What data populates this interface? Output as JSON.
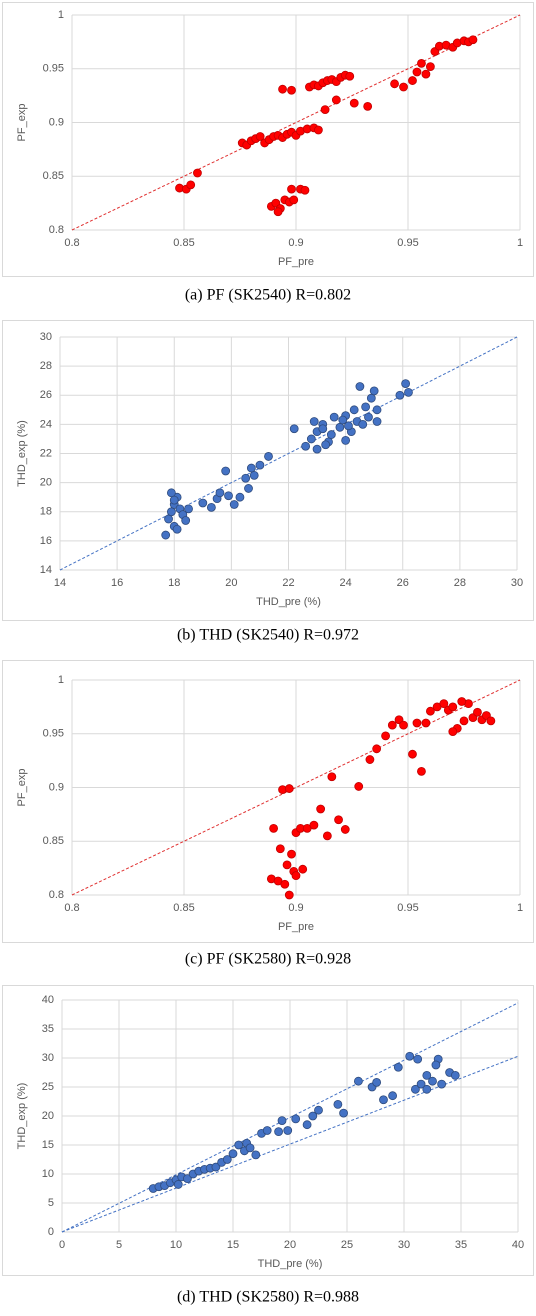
{
  "chart_data": [
    {
      "type": "scatter",
      "caption": "(a)  PF  (SK2540)  R=0.802",
      "x_label": "PF_pre",
      "y_label": "PF_exp",
      "xlim": [
        0.8,
        1
      ],
      "ylim": [
        0.8,
        1
      ],
      "xticks": [
        0.8,
        0.85,
        0.9,
        0.95,
        1
      ],
      "yticks": [
        0.8,
        0.85,
        0.9,
        0.95,
        1
      ],
      "grid": true,
      "color": "#ff0000",
      "edge_color": "#c00000",
      "lines": [
        {
          "x": [
            0.8,
            1
          ],
          "y": [
            0.8,
            1
          ],
          "color": "#e03030"
        }
      ],
      "x": [
        0.848,
        0.851,
        0.853,
        0.856,
        0.876,
        0.878,
        0.88,
        0.882,
        0.884,
        0.886,
        0.888,
        0.89,
        0.892,
        0.894,
        0.896,
        0.898,
        0.9,
        0.902,
        0.905,
        0.908,
        0.91,
        0.889,
        0.891,
        0.893,
        0.895,
        0.897,
        0.899,
        0.892,
        0.898,
        0.902,
        0.904,
        0.894,
        0.898,
        0.906,
        0.908,
        0.91,
        0.912,
        0.914,
        0.916,
        0.918,
        0.92,
        0.922,
        0.924,
        0.913,
        0.918,
        0.926,
        0.932,
        0.944,
        0.948,
        0.952,
        0.954,
        0.956,
        0.958,
        0.96,
        0.962,
        0.964,
        0.967,
        0.97,
        0.972,
        0.975,
        0.977,
        0.979
      ],
      "y": [
        0.839,
        0.838,
        0.842,
        0.853,
        0.881,
        0.879,
        0.883,
        0.885,
        0.887,
        0.881,
        0.884,
        0.887,
        0.888,
        0.886,
        0.889,
        0.891,
        0.888,
        0.892,
        0.894,
        0.895,
        0.893,
        0.822,
        0.825,
        0.82,
        0.828,
        0.826,
        0.828,
        0.817,
        0.838,
        0.838,
        0.837,
        0.931,
        0.93,
        0.933,
        0.935,
        0.934,
        0.937,
        0.939,
        0.94,
        0.938,
        0.942,
        0.944,
        0.943,
        0.912,
        0.921,
        0.918,
        0.915,
        0.936,
        0.933,
        0.939,
        0.947,
        0.955,
        0.945,
        0.952,
        0.966,
        0.971,
        0.972,
        0.97,
        0.974,
        0.976,
        0.975,
        0.977
      ]
    },
    {
      "type": "scatter",
      "caption": "(b)  THD  (SK2540)  R=0.972",
      "x_label": "THD_pre (%)",
      "y_label": "THD_exp (%)",
      "xlim": [
        14,
        30
      ],
      "ylim": [
        14,
        30
      ],
      "xticks": [
        14,
        16,
        18,
        20,
        22,
        24,
        26,
        28,
        30
      ],
      "yticks": [
        14,
        16,
        18,
        20,
        22,
        24,
        26,
        28,
        30
      ],
      "grid": true,
      "color": "#4472c4",
      "edge_color": "#2f4b7c",
      "lines": [
        {
          "x": [
            14,
            30
          ],
          "y": [
            14,
            30
          ],
          "color": "#4472c4"
        }
      ],
      "x": [
        17.7,
        17.8,
        17.9,
        18,
        18.1,
        18,
        17.9,
        18.2,
        18.3,
        18.4,
        18.1,
        18,
        18.5,
        19,
        19.3,
        19.5,
        19.6,
        19.8,
        19.9,
        20.1,
        20.3,
        20.5,
        20.6,
        20.8,
        20.7,
        21,
        21.3,
        22.2,
        22.6,
        22.8,
        23,
        23,
        23.2,
        23.4,
        23.5,
        23.6,
        23.8,
        24,
        24,
        24.2,
        24.3,
        24.4,
        24.5,
        24.6,
        24.7,
        24.8,
        24.9,
        25,
        25.1,
        25.1,
        23.2,
        22.9,
        23.3,
        24.1,
        23.9,
        25.9,
        26.1,
        26.2
      ],
      "y": [
        16.4,
        17.5,
        18,
        18.5,
        19,
        17,
        19.3,
        18.2,
        17.8,
        17.4,
        16.8,
        18.8,
        18.2,
        18.6,
        18.3,
        18.9,
        19.3,
        20.8,
        19.1,
        18.5,
        19,
        20.3,
        19.6,
        20.5,
        21,
        21.2,
        21.8,
        23.7,
        22.5,
        23,
        22.3,
        23.5,
        24,
        22.8,
        23.3,
        24.5,
        23.8,
        22.9,
        24.6,
        23.5,
        25,
        24.2,
        26.6,
        24,
        25.2,
        24.5,
        25.8,
        26.3,
        25,
        24.2,
        23.7,
        24.2,
        22.6,
        23.9,
        24.3,
        26,
        26.8,
        26.2
      ]
    },
    {
      "type": "scatter",
      "caption": "(c)  PF  (SK2580)  R=0.928",
      "x_label": "PF_pre",
      "y_label": "PF_exp",
      "xlim": [
        0.8,
        1
      ],
      "ylim": [
        0.8,
        1
      ],
      "xticks": [
        0.8,
        0.85,
        0.9,
        0.95,
        1
      ],
      "yticks": [
        0.8,
        0.85,
        0.9,
        0.95,
        1
      ],
      "grid": true,
      "color": "#ff0000",
      "edge_color": "#c00000",
      "lines": [
        {
          "x": [
            0.8,
            1
          ],
          "y": [
            0.8,
            1
          ],
          "color": "#e03030"
        }
      ],
      "x": [
        0.89,
        0.889,
        0.892,
        0.895,
        0.897,
        0.893,
        0.896,
        0.898,
        0.899,
        0.9,
        0.902,
        0.9,
        0.903,
        0.905,
        0.894,
        0.897,
        0.908,
        0.911,
        0.914,
        0.916,
        0.919,
        0.922,
        0.928,
        0.933,
        0.936,
        0.94,
        0.943,
        0.946,
        0.948,
        0.952,
        0.954,
        0.956,
        0.958,
        0.96,
        0.963,
        0.966,
        0.968,
        0.97,
        0.972,
        0.975,
        0.977,
        0.979,
        0.981,
        0.983,
        0.985,
        0.987,
        0.974,
        0.97
      ],
      "y": [
        0.862,
        0.815,
        0.813,
        0.81,
        0.8,
        0.843,
        0.828,
        0.838,
        0.822,
        0.858,
        0.862,
        0.818,
        0.824,
        0.862,
        0.898,
        0.899,
        0.865,
        0.88,
        0.855,
        0.91,
        0.87,
        0.861,
        0.901,
        0.926,
        0.936,
        0.948,
        0.958,
        0.963,
        0.958,
        0.931,
        0.96,
        0.915,
        0.96,
        0.971,
        0.975,
        0.978,
        0.972,
        0.975,
        0.955,
        0.962,
        0.978,
        0.965,
        0.97,
        0.963,
        0.967,
        0.962,
        0.98,
        0.952
      ]
    },
    {
      "type": "scatter",
      "caption": "(d)  THD  (SK2580)  R=0.988",
      "x_label": "THD_pre (%)",
      "y_label": "THD_exp (%)",
      "xlim": [
        0,
        40
      ],
      "ylim": [
        0,
        40
      ],
      "xticks": [
        0,
        5,
        10,
        15,
        20,
        25,
        30,
        35,
        40
      ],
      "yticks": [
        0,
        5,
        10,
        15,
        20,
        25,
        30,
        35,
        40
      ],
      "grid": true,
      "color": "#4472c4",
      "edge_color": "#2f4b7c",
      "lines": [
        {
          "x": [
            0,
            40
          ],
          "y": [
            0,
            39.5
          ],
          "color": "#4472c4"
        },
        {
          "x": [
            0,
            40
          ],
          "y": [
            0,
            30.3
          ],
          "color": "#4472c4"
        }
      ],
      "x": [
        8,
        8.5,
        9,
        9.5,
        10,
        10.2,
        10.5,
        11,
        11.5,
        12,
        12.5,
        13,
        13.5,
        14,
        14.5,
        15,
        15.5,
        16,
        16.2,
        16.5,
        17,
        17.5,
        18,
        19,
        19.3,
        19.8,
        20.5,
        21.5,
        22,
        22.5,
        24.2,
        24.7,
        26,
        27.2,
        27.6,
        28.2,
        29,
        29.5,
        30.5,
        31,
        31.5,
        32,
        32,
        32.5,
        33,
        33.3,
        34,
        34.5,
        31.2,
        32.8
      ],
      "y": [
        7.5,
        7.8,
        8,
        8.5,
        9,
        8.2,
        9.5,
        9.2,
        10,
        10.5,
        10.8,
        11,
        11.2,
        12,
        12.5,
        13.5,
        15,
        14,
        15.3,
        14.5,
        13.3,
        17,
        17.5,
        17.3,
        19.2,
        17.5,
        19.5,
        18.5,
        20,
        21,
        22,
        20.5,
        26,
        25,
        25.8,
        22.8,
        23.5,
        28.4,
        30.3,
        24.6,
        25.5,
        27,
        24.6,
        26,
        29.8,
        25.5,
        27.5,
        27,
        29.8,
        28.8
      ]
    }
  ]
}
